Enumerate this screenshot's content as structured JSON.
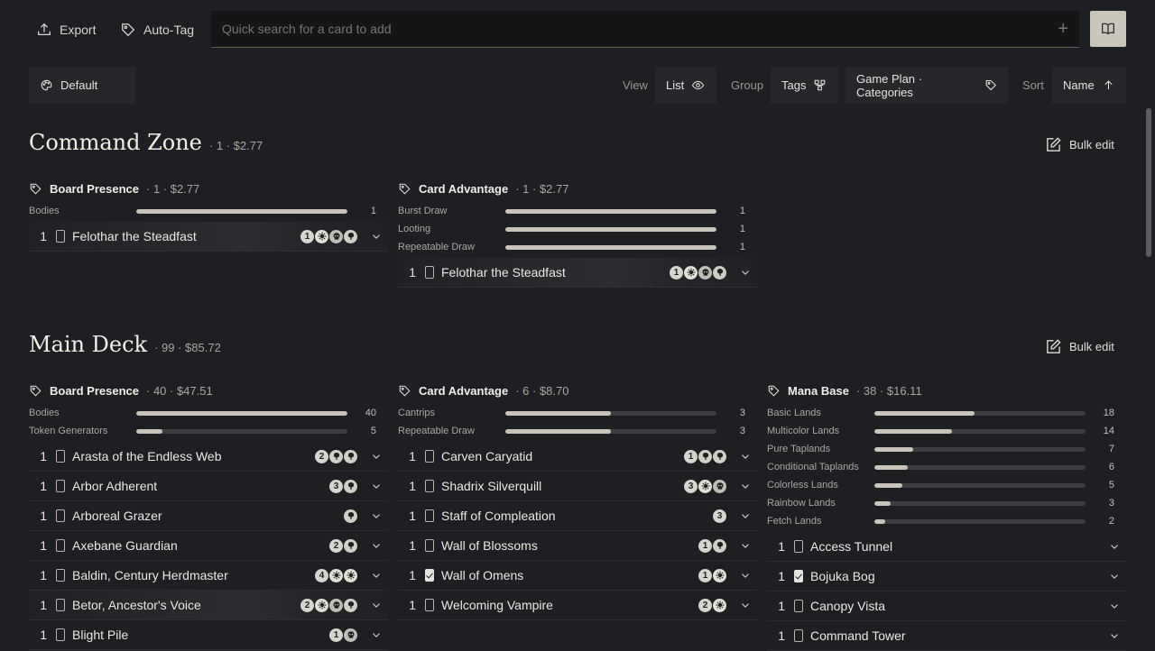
{
  "topbar": {
    "export_label": "Export",
    "autotag_label": "Auto-Tag",
    "search_placeholder": "Quick search for a card to add"
  },
  "toolbar": {
    "default_label": "Default",
    "view_label": "View",
    "view_value": "List",
    "group_label": "Group",
    "group_value": "Tags",
    "group_category": "Game Plan · Categories",
    "sort_label": "Sort",
    "sort_value": "Name"
  },
  "sections": [
    {
      "title": "Command Zone",
      "meta": "· 1 · $2.77",
      "bulk_edit": "Bulk edit",
      "groups": [
        {
          "name": "Board Presence",
          "meta": "· 1 · $2.77",
          "stats": [
            {
              "label": "Bodies",
              "fill": 1.0,
              "count": "1"
            }
          ],
          "cards": [
            {
              "qty": "1",
              "name": "Felothar the Steadfast",
              "mana": [
                "1",
                "W",
                "B",
                "G"
              ],
              "checked": false,
              "highlight": true
            }
          ]
        },
        {
          "name": "Card Advantage",
          "meta": "· 1 · $2.77",
          "stats": [
            {
              "label": "Burst Draw",
              "fill": 1.0,
              "count": "1"
            },
            {
              "label": "Looting",
              "fill": 1.0,
              "count": "1"
            },
            {
              "label": "Repeatable Draw",
              "fill": 1.0,
              "count": "1"
            }
          ],
          "cards": [
            {
              "qty": "1",
              "name": "Felothar the Steadfast",
              "mana": [
                "1",
                "W",
                "B",
                "G"
              ],
              "checked": false,
              "highlight": true
            }
          ]
        }
      ]
    },
    {
      "title": "Main Deck",
      "meta": "· 99 · $85.72",
      "bulk_edit": "Bulk edit",
      "groups": [
        {
          "name": "Board Presence",
          "meta": "· 40 · $47.51",
          "stats": [
            {
              "label": "Bodies",
              "fill": 1.0,
              "count": "40"
            },
            {
              "label": "Token Generators",
              "fill": 0.125,
              "count": "5"
            }
          ],
          "cards": [
            {
              "qty": "1",
              "name": "Arasta of the Endless Web",
              "mana": [
                "2",
                "G",
                "G"
              ],
              "checked": false,
              "highlight": false
            },
            {
              "qty": "1",
              "name": "Arbor Adherent",
              "mana": [
                "3",
                "G"
              ],
              "checked": false,
              "highlight": false
            },
            {
              "qty": "1",
              "name": "Arboreal Grazer",
              "mana": [
                "G"
              ],
              "checked": false,
              "highlight": false
            },
            {
              "qty": "1",
              "name": "Axebane Guardian",
              "mana": [
                "2",
                "G"
              ],
              "checked": false,
              "highlight": false
            },
            {
              "qty": "1",
              "name": "Baldin, Century Herdmaster",
              "mana": [
                "4",
                "W",
                "W"
              ],
              "checked": false,
              "highlight": false
            },
            {
              "qty": "1",
              "name": "Betor, Ancestor's Voice",
              "mana": [
                "2",
                "W",
                "B",
                "G"
              ],
              "checked": false,
              "highlight": true
            },
            {
              "qty": "1",
              "name": "Blight Pile",
              "mana": [
                "1",
                "B"
              ],
              "checked": false,
              "highlight": false
            }
          ]
        },
        {
          "name": "Card Advantage",
          "meta": "· 6 · $8.70",
          "stats": [
            {
              "label": "Cantrips",
              "fill": 0.5,
              "count": "3"
            },
            {
              "label": "Repeatable Draw",
              "fill": 0.5,
              "count": "3"
            }
          ],
          "cards": [
            {
              "qty": "1",
              "name": "Carven Caryatid",
              "mana": [
                "1",
                "G",
                "G"
              ],
              "checked": false,
              "highlight": false
            },
            {
              "qty": "1",
              "name": "Shadrix Silverquill",
              "mana": [
                "3",
                "W",
                "B"
              ],
              "checked": false,
              "highlight": false
            },
            {
              "qty": "1",
              "name": "Staff of Compleation",
              "mana": [
                "3"
              ],
              "checked": false,
              "highlight": false
            },
            {
              "qty": "1",
              "name": "Wall of Blossoms",
              "mana": [
                "1",
                "G"
              ],
              "checked": false,
              "highlight": false
            },
            {
              "qty": "1",
              "name": "Wall of Omens",
              "mana": [
                "1",
                "W"
              ],
              "checked": true,
              "highlight": false
            },
            {
              "qty": "1",
              "name": "Welcoming Vampire",
              "mana": [
                "2",
                "W"
              ],
              "checked": false,
              "highlight": false
            }
          ]
        },
        {
          "name": "Mana Base",
          "meta": "· 38 · $16.11",
          "stats": [
            {
              "label": "Basic Lands",
              "fill": 0.474,
              "count": "18"
            },
            {
              "label": "Multicolor Lands",
              "fill": 0.368,
              "count": "14"
            },
            {
              "label": "Pure Taplands",
              "fill": 0.184,
              "count": "7"
            },
            {
              "label": "Conditional Taplands",
              "fill": 0.158,
              "count": "6"
            },
            {
              "label": "Colorless Lands",
              "fill": 0.132,
              "count": "5"
            },
            {
              "label": "Rainbow Lands",
              "fill": 0.079,
              "count": "3"
            },
            {
              "label": "Fetch Lands",
              "fill": 0.053,
              "count": "2"
            }
          ],
          "cards": [
            {
              "qty": "1",
              "name": "Access Tunnel",
              "mana": [],
              "checked": false,
              "highlight": false
            },
            {
              "qty": "1",
              "name": "Bojuka Bog",
              "mana": [],
              "checked": true,
              "highlight": false
            },
            {
              "qty": "1",
              "name": "Canopy Vista",
              "mana": [],
              "checked": false,
              "highlight": false
            },
            {
              "qty": "1",
              "name": "Command Tower",
              "mana": [],
              "checked": false,
              "highlight": false
            }
          ]
        }
      ]
    }
  ]
}
